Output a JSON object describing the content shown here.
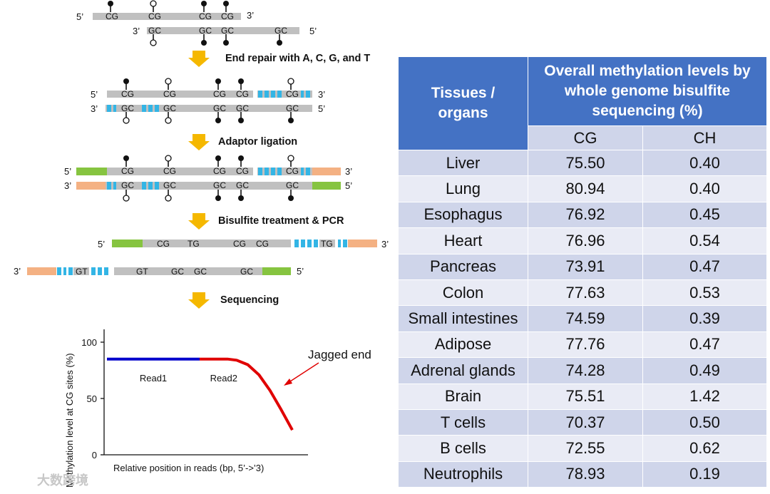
{
  "workflow": {
    "strand_labels": {
      "five_prime": "5’",
      "three_prime": "3’"
    },
    "stage1": {
      "top": [
        "CG",
        "CG",
        "CG",
        "CG"
      ],
      "bottom": [
        "GC",
        "GC",
        "GC",
        "GC"
      ]
    },
    "stage2": {
      "top": [
        "CG",
        "CG",
        "CG",
        "CG",
        "CG"
      ],
      "bottom": [
        "GC",
        "GC",
        "GC",
        "GC",
        "GC"
      ]
    },
    "stage4": {
      "top": [
        "CG",
        "TG",
        "CG",
        "CG",
        "TG"
      ],
      "bottom": [
        "GT",
        "GT",
        "GC",
        "GC",
        "GC"
      ]
    },
    "steps": [
      "End repair with A, C, G, and T",
      "Adaptor ligation",
      "Bisulfite treatment & PCR",
      "Sequencing"
    ],
    "colors": {
      "backbone": "#c0c0c0",
      "adaptor_blue": "#33b5e5",
      "adaptor_green": "#86c440",
      "adaptor_peach": "#f4b183",
      "arrow": "#f5b800"
    }
  },
  "chart_data": {
    "type": "line",
    "ylabel": "Methylation level at CG sites (%)",
    "xlabel": "Relative position in reads (bp, 5’->’3)",
    "yticks": [
      "0",
      "50",
      "100"
    ],
    "ylim": [
      0,
      100
    ],
    "series": [
      {
        "name": "Read1",
        "color": "#0000cc",
        "points": [
          [
            0,
            85
          ],
          [
            50,
            85
          ]
        ]
      },
      {
        "name": "Read2",
        "color": "#e00000",
        "points": [
          [
            50,
            85
          ],
          [
            65,
            85
          ],
          [
            70,
            84
          ],
          [
            76,
            80
          ],
          [
            82,
            71
          ],
          [
            88,
            57
          ],
          [
            94,
            40
          ],
          [
            100,
            22
          ]
        ]
      }
    ],
    "annotation": "Jagged end"
  },
  "table": {
    "header_col1": "Tissues / organs",
    "header_col2": "Overall methylation levels by whole genome bisulfite sequencing (%)",
    "sub_cg": "CG",
    "sub_ch": "CH",
    "rows": [
      {
        "tissue": "Liver",
        "cg": "75.50",
        "ch": "0.40"
      },
      {
        "tissue": "Lung",
        "cg": "80.94",
        "ch": "0.40"
      },
      {
        "tissue": "Esophagus",
        "cg": "76.92",
        "ch": "0.45"
      },
      {
        "tissue": "Heart",
        "cg": "76.96",
        "ch": "0.54"
      },
      {
        "tissue": "Pancreas",
        "cg": "73.91",
        "ch": "0.47"
      },
      {
        "tissue": "Colon",
        "cg": "77.63",
        "ch": "0.53"
      },
      {
        "tissue": "Small intestines",
        "cg": "74.59",
        "ch": "0.39"
      },
      {
        "tissue": "Adipose",
        "cg": "77.76",
        "ch": "0.47"
      },
      {
        "tissue": "Adrenal glands",
        "cg": "74.28",
        "ch": "0.49"
      },
      {
        "tissue": "Brain",
        "cg": "75.51",
        "ch": "1.42"
      },
      {
        "tissue": "T cells",
        "cg": "70.37",
        "ch": "0.50"
      },
      {
        "tissue": "B cells",
        "cg": "72.55",
        "ch": "0.62"
      },
      {
        "tissue": "Neutrophils",
        "cg": "78.93",
        "ch": "0.19"
      }
    ]
  },
  "watermark": "大数跨境"
}
